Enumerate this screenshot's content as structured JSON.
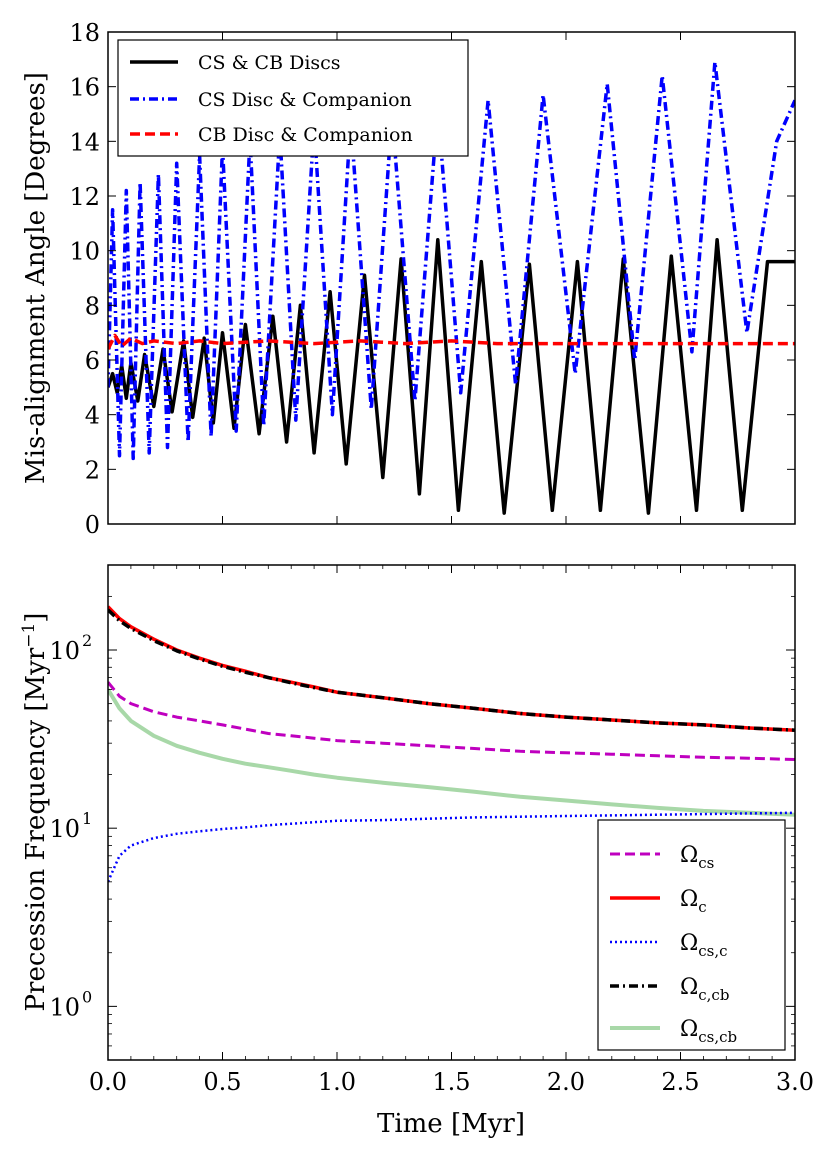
{
  "chart_data": [
    {
      "type": "line",
      "panel": "top",
      "ylabel": "Mis-alignment Angle [Degrees]",
      "xlabel": "",
      "xlim": [
        0,
        3
      ],
      "ylim": [
        0,
        18
      ],
      "yscale": "linear",
      "yticks": [
        0,
        2,
        4,
        6,
        8,
        10,
        12,
        14,
        16,
        18
      ],
      "ytick_labels": [
        "0",
        "2",
        "4",
        "6",
        "8",
        "10",
        "12",
        "14",
        "16",
        "18"
      ],
      "legend_position": "top-left",
      "series": [
        {
          "name": "CS & CB Discs",
          "color": "#000000",
          "style": "solid",
          "x": [
            0.0,
            0.02,
            0.04,
            0.06,
            0.08,
            0.1,
            0.13,
            0.16,
            0.2,
            0.24,
            0.28,
            0.33,
            0.37,
            0.42,
            0.46,
            0.5,
            0.55,
            0.6,
            0.66,
            0.72,
            0.78,
            0.84,
            0.9,
            0.97,
            1.04,
            1.12,
            1.2,
            1.28,
            1.36,
            1.44,
            1.53,
            1.63,
            1.73,
            1.84,
            1.94,
            2.05,
            2.15,
            2.25,
            2.36,
            2.46,
            2.57,
            2.66,
            2.77,
            2.88,
            3.0
          ],
          "y": [
            5.0,
            5.5,
            4.8,
            5.8,
            4.6,
            5.9,
            4.5,
            6.2,
            4.3,
            6.4,
            4.1,
            6.7,
            3.9,
            6.8,
            3.7,
            7.0,
            3.5,
            7.3,
            3.3,
            7.6,
            3.0,
            8.0,
            2.6,
            8.5,
            2.2,
            9.1,
            1.7,
            9.7,
            1.1,
            10.4,
            0.5,
            9.6,
            0.4,
            9.5,
            0.5,
            9.6,
            0.5,
            9.7,
            0.4,
            9.8,
            0.5,
            10.4,
            0.5,
            9.6,
            9.6
          ]
        },
        {
          "name": "CS Disc & Companion",
          "color": "#0000ff",
          "style": "dashdot",
          "x": [
            0.0,
            0.02,
            0.05,
            0.08,
            0.11,
            0.14,
            0.18,
            0.22,
            0.26,
            0.3,
            0.35,
            0.4,
            0.45,
            0.5,
            0.56,
            0.62,
            0.68,
            0.75,
            0.82,
            0.9,
            0.98,
            1.06,
            1.15,
            1.24,
            1.34,
            1.44,
            1.54,
            1.66,
            1.78,
            1.9,
            2.04,
            2.18,
            2.3,
            2.42,
            2.55,
            2.65,
            2.79,
            2.92,
            3.0
          ],
          "y": [
            5.0,
            11.5,
            2.5,
            12.2,
            2.4,
            12.5,
            2.6,
            12.8,
            2.8,
            13.2,
            3.0,
            13.5,
            3.2,
            13.8,
            3.4,
            14.1,
            3.6,
            14.3,
            3.8,
            14.6,
            4.0,
            14.8,
            4.2,
            15.0,
            4.5,
            15.2,
            4.8,
            15.5,
            5.1,
            15.7,
            5.5,
            16.1,
            6.0,
            16.4,
            6.3,
            16.9,
            7.0,
            14.0,
            15.5
          ]
        },
        {
          "name": "CB Disc & Companion",
          "color": "#ff0000",
          "style": "dashed",
          "x": [
            0.0,
            0.03,
            0.06,
            0.1,
            0.15,
            0.2,
            0.3,
            0.4,
            0.5,
            0.7,
            0.9,
            1.1,
            1.3,
            1.5,
            1.7,
            1.9,
            2.1,
            2.3,
            2.5,
            2.7,
            2.9,
            3.0
          ],
          "y": [
            6.4,
            6.9,
            6.5,
            6.8,
            6.6,
            6.7,
            6.6,
            6.7,
            6.6,
            6.7,
            6.6,
            6.7,
            6.6,
            6.7,
            6.6,
            6.6,
            6.6,
            6.6,
            6.6,
            6.6,
            6.6,
            6.6
          ]
        }
      ]
    },
    {
      "type": "line",
      "panel": "bottom",
      "ylabel": "Precession Frequency [Myr",
      "ylabel_sup": "−1",
      "ylabel_end": "]",
      "xlabel": "Time [Myr]",
      "xlim": [
        0,
        3
      ],
      "ylim": [
        0.5,
        300
      ],
      "yscale": "log",
      "xticks": [
        0,
        0.5,
        1,
        1.5,
        2,
        2.5,
        3
      ],
      "xtick_labels": [
        "0.0",
        "0.5",
        "1.0",
        "1.5",
        "2.0",
        "2.5",
        "3.0"
      ],
      "yticks": [
        1,
        10,
        100
      ],
      "ytick_bases": [
        "10",
        "10",
        "10"
      ],
      "ytick_exponents": [
        "0",
        "1",
        "2"
      ],
      "legend_position": "bottom-right",
      "series": [
        {
          "name": "Ω",
          "sub": "cs",
          "color": "#bf00bf",
          "style": "dashed",
          "x": [
            0.0,
            0.05,
            0.1,
            0.2,
            0.3,
            0.4,
            0.5,
            0.6,
            0.7,
            0.8,
            0.9,
            1.0,
            1.2,
            1.4,
            1.6,
            1.8,
            2.0,
            2.2,
            2.4,
            2.6,
            2.8,
            3.0
          ],
          "y": [
            66,
            55,
            50,
            45,
            42,
            40,
            38,
            36,
            34,
            33,
            32,
            31,
            30,
            29,
            28,
            27,
            26.5,
            26,
            25.5,
            25,
            24.7,
            24.3
          ]
        },
        {
          "name": "Ω",
          "sub": "c",
          "color": "#ff0000",
          "style": "solid",
          "x": [
            0.0,
            0.05,
            0.1,
            0.2,
            0.3,
            0.4,
            0.5,
            0.6,
            0.7,
            0.8,
            0.9,
            1.0,
            1.2,
            1.4,
            1.6,
            1.8,
            2.0,
            2.2,
            2.4,
            2.6,
            2.8,
            3.0
          ],
          "y": [
            175,
            150,
            135,
            115,
            100,
            90,
            82,
            76,
            70,
            66,
            62,
            58,
            54,
            50,
            47,
            44,
            42,
            40.5,
            39,
            38,
            36.5,
            35.5
          ]
        },
        {
          "name": "Ω",
          "sub": "cs,c",
          "color": "#0000ff",
          "style": "dotted",
          "x": [
            0.0,
            0.05,
            0.1,
            0.2,
            0.3,
            0.4,
            0.5,
            0.6,
            0.7,
            0.8,
            0.9,
            1.0,
            1.2,
            1.4,
            1.6,
            1.8,
            2.0,
            2.2,
            2.4,
            2.6,
            2.8,
            3.0
          ],
          "y": [
            5.0,
            7.0,
            8.0,
            8.8,
            9.3,
            9.6,
            9.9,
            10.1,
            10.4,
            10.6,
            10.8,
            11.0,
            11.1,
            11.3,
            11.5,
            11.6,
            11.7,
            11.8,
            11.9,
            12.0,
            12.1,
            12.2
          ]
        },
        {
          "name": "Ω",
          "sub": "c,cb",
          "color": "#000000",
          "style": "dashdot",
          "x": [
            0.0,
            0.05,
            0.1,
            0.2,
            0.3,
            0.4,
            0.5,
            0.6,
            0.7,
            0.8,
            0.9,
            1.0,
            1.2,
            1.4,
            1.6,
            1.8,
            2.0,
            2.2,
            2.4,
            2.6,
            2.8,
            3.0
          ],
          "y": [
            168,
            146,
            132,
            113,
            99,
            89,
            81,
            75,
            70,
            65.5,
            61.5,
            58,
            54,
            50,
            47,
            44,
            42,
            40.5,
            39,
            38,
            36.5,
            35.5
          ]
        },
        {
          "name": "Ω",
          "sub": "cs,cb",
          "color": "#a8d8a8",
          "style": "solid",
          "x": [
            0.0,
            0.05,
            0.1,
            0.2,
            0.3,
            0.4,
            0.5,
            0.6,
            0.7,
            0.8,
            0.9,
            1.0,
            1.2,
            1.4,
            1.6,
            1.8,
            2.0,
            2.2,
            2.4,
            2.6,
            2.8,
            3.0
          ],
          "y": [
            60,
            47,
            40,
            33,
            29,
            26.5,
            24.5,
            23,
            22,
            21,
            20,
            19.2,
            18,
            17,
            16,
            15,
            14.3,
            13.6,
            13,
            12.5,
            12.2,
            11.9
          ]
        }
      ]
    }
  ]
}
